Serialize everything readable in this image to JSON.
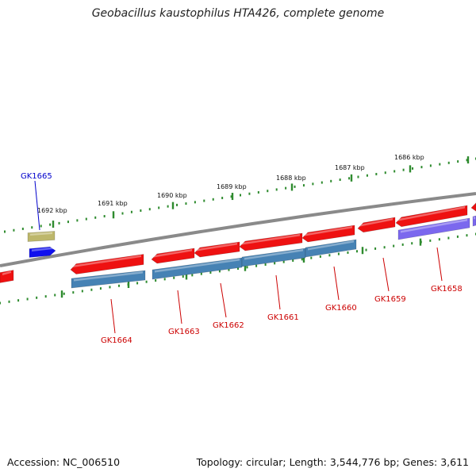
{
  "title": "Geobacillus kaustophilus HTA426, complete genome",
  "footer": {
    "accession": "Accession: NC_006510",
    "topology": "Topology: circular; Length: 3,544,776 bp; Genes: 3,611"
  },
  "colors": {
    "backbone": "#8a8a8a",
    "tick": "#2e8b2e",
    "gene_forward": "#ee1111",
    "gene_cds_blue": "#4682b4",
    "gene_cds_purple": "#7b68ee",
    "gene_olive": "#bdb76b",
    "gene_selected": "#1010ee",
    "label_red": "#cc0000",
    "label_blue": "#0000cc"
  },
  "ruler_labels": [
    "1692 kbp",
    "1691 kbp",
    "1690 kbp",
    "1689 kbp",
    "1688 kbp",
    "1687 kbp",
    "1686 kbp"
  ],
  "gene_labels": [
    {
      "text": "GK1665",
      "color": "blue"
    },
    {
      "text": "GK1664",
      "color": "red"
    },
    {
      "text": "GK1663",
      "color": "red"
    },
    {
      "text": "GK1662",
      "color": "red"
    },
    {
      "text": "GK1661",
      "color": "red"
    },
    {
      "text": "GK1660",
      "color": "red"
    },
    {
      "text": "GK1659",
      "color": "red"
    },
    {
      "text": "GK1658",
      "color": "red"
    }
  ]
}
